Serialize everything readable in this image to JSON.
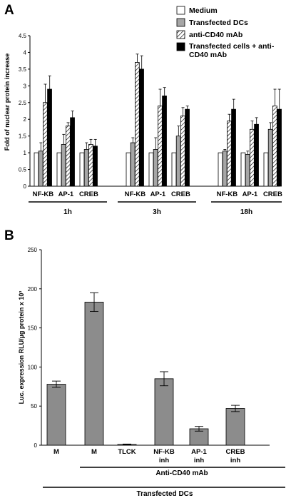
{
  "panel_a": {
    "letter": "A",
    "legend": {
      "medium": "Medium",
      "transfected": "Transfected DCs",
      "anti_cd40_line1": "anti-CD40 mAb",
      "combo_line1": "Transfected cells + anti-",
      "combo_line2": "CD40 mAb"
    },
    "group_labels": [
      "1h",
      "3h",
      "18h"
    ]
  },
  "panel_b": {
    "letter": "B",
    "sublabel_line2": [
      "",
      "",
      "",
      "inh",
      "inh",
      "inh"
    ],
    "bracket_label": "Anti-CD40 mAb",
    "bottom_label": "Transfected DCs"
  },
  "colors": {
    "medium": "#ffffff",
    "transfected": "#a6a6a6",
    "combo": "#000000",
    "bar_b": "#8c8c8c"
  },
  "chart_data": [
    {
      "type": "bar",
      "ylabel": "Fold of nuclear protein increase",
      "ylim": [
        0,
        4.5
      ],
      "yticks": [
        "0",
        "0.5",
        "1",
        "1.5",
        "2",
        "2.5",
        "3",
        "3.5",
        "4",
        "4.5"
      ],
      "grid": false,
      "legend_position": "top-right",
      "categories": [
        "NF-KB",
        "AP-1",
        "CREB",
        "NF-KB",
        "AP-1",
        "CREB",
        "NF-KB",
        "AP-1",
        "CREB"
      ],
      "series": [
        {
          "name": "Medium",
          "values": [
            1.0,
            1.0,
            1.0,
            1.0,
            1.0,
            1.0,
            1.0,
            1.0,
            1.0
          ],
          "errors": [
            0.0,
            0.0,
            0.0,
            0.0,
            0.0,
            0.0,
            0.0,
            0.0,
            0.0
          ]
        },
        {
          "name": "Transfected DCs",
          "values": [
            1.05,
            1.25,
            1.1,
            1.3,
            1.1,
            1.5,
            1.05,
            0.95,
            1.7
          ],
          "errors": [
            0.25,
            0.3,
            0.2,
            0.15,
            0.35,
            0.3,
            0.05,
            0.1,
            0.2
          ]
        },
        {
          "name": "anti-CD40 mAb",
          "values": [
            2.5,
            1.8,
            1.25,
            3.7,
            2.4,
            2.1,
            1.95,
            1.7,
            2.4
          ],
          "errors": [
            0.55,
            0.1,
            0.15,
            0.25,
            0.5,
            0.25,
            0.2,
            0.25,
            0.5
          ]
        },
        {
          "name": "Transfected cells + anti-CD40 mAb",
          "values": [
            2.9,
            2.05,
            1.2,
            3.5,
            2.7,
            2.3,
            2.3,
            1.85,
            2.3
          ],
          "errors": [
            0.4,
            0.2,
            0.2,
            0.4,
            0.25,
            0.1,
            0.3,
            0.2,
            0.6
          ]
        }
      ],
      "groups": [
        {
          "label": "1h",
          "categories": [
            "NF-KB",
            "AP-1",
            "CREB"
          ]
        },
        {
          "label": "3h",
          "categories": [
            "NF-KB",
            "AP-1",
            "CREB"
          ]
        },
        {
          "label": "18h",
          "categories": [
            "NF-KB",
            "AP-1",
            "CREB"
          ]
        }
      ]
    },
    {
      "type": "bar",
      "ylabel": "Luc. expression RLU/µg protein x 10³",
      "ylim": [
        0,
        250
      ],
      "yticks": [
        "0",
        "50",
        "100",
        "150",
        "200",
        "250"
      ],
      "grid": false,
      "categories": [
        "M",
        "M",
        "TLCK",
        "NF-KB",
        "AP-1",
        "CREB"
      ],
      "values": [
        78,
        183,
        1,
        85,
        21,
        47
      ],
      "errors": [
        4,
        12,
        0.5,
        9,
        3,
        4
      ]
    }
  ]
}
